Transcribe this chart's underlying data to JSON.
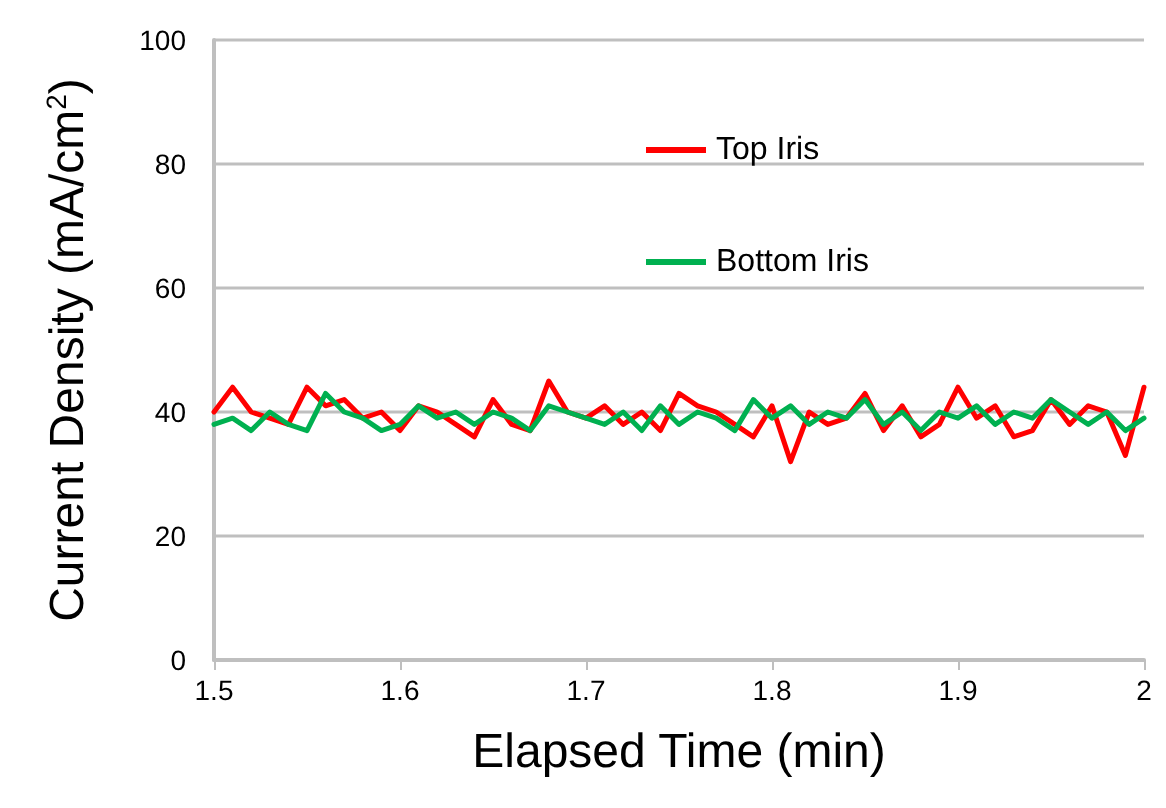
{
  "chart_data": {
    "type": "line",
    "xlabel": "Elapsed Time (min)",
    "ylabel": "Current Density (mA/cm$^{2}$)",
    "x": [
      1.5,
      1.51,
      1.52,
      1.53,
      1.54,
      1.55,
      1.56,
      1.57,
      1.58,
      1.59,
      1.6,
      1.61,
      1.62,
      1.63,
      1.64,
      1.65,
      1.66,
      1.67,
      1.68,
      1.69,
      1.7,
      1.71,
      1.72,
      1.73,
      1.74,
      1.75,
      1.76,
      1.77,
      1.78,
      1.79,
      1.8,
      1.81,
      1.82,
      1.83,
      1.84,
      1.85,
      1.86,
      1.87,
      1.88,
      1.89,
      1.9,
      1.91,
      1.92,
      1.93,
      1.94,
      1.95,
      1.96,
      1.97,
      1.98,
      1.99,
      2.0
    ],
    "series": [
      {
        "name": "Top Iris",
        "color": "#ff0000",
        "values": [
          40,
          44,
          40,
          39,
          38,
          44,
          41,
          42,
          39,
          40,
          37,
          41,
          40,
          38,
          36,
          42,
          38,
          37,
          45,
          40,
          39,
          41,
          38,
          40,
          37,
          43,
          41,
          40,
          38,
          36,
          41,
          32,
          40,
          38,
          39,
          43,
          37,
          41,
          36,
          38,
          44,
          39,
          41,
          36,
          37,
          42,
          38,
          41,
          40,
          33,
          44
        ]
      },
      {
        "name": "Bottom Iris",
        "color": "#00b050",
        "values": [
          38,
          39,
          37,
          40,
          38,
          37,
          43,
          40,
          39,
          37,
          38,
          41,
          39,
          40,
          38,
          40,
          39,
          37,
          41,
          40,
          39,
          38,
          40,
          37,
          41,
          38,
          40,
          39,
          37,
          42,
          39,
          41,
          38,
          40,
          39,
          42,
          38,
          40,
          37,
          40,
          39,
          41,
          38,
          40,
          39,
          42,
          40,
          38,
          40,
          37,
          39
        ]
      }
    ],
    "xlim": [
      1.5,
      2.0
    ],
    "xticks": [
      1.5,
      1.6,
      1.7,
      1.8,
      1.9,
      2
    ],
    "ylim": [
      0,
      100
    ],
    "yticks": [
      0,
      20,
      40,
      60,
      80,
      100
    ],
    "grid": "y",
    "legend": "right",
    "marker": "none",
    "line_style": "solid"
  }
}
